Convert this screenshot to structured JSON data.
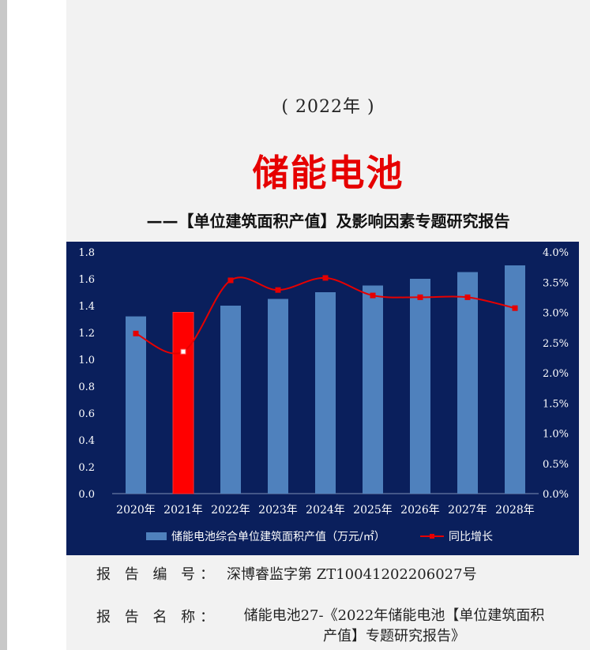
{
  "doc": {
    "year_line": "( 2022年 )",
    "title": "储能电池",
    "subtitle": "——【单位建筑面积产值】及影响因素专题研究报告"
  },
  "chart_data": {
    "type": "bar",
    "categories": [
      "2020年",
      "2021年",
      "2022年",
      "2023年",
      "2024年",
      "2025年",
      "2026年",
      "2027年",
      "2028年"
    ],
    "series": [
      {
        "name": "储能电池综合单位建筑面积产值（万元/㎡）",
        "kind": "bar",
        "axis": "left",
        "values": [
          1.32,
          1.35,
          1.4,
          1.45,
          1.5,
          1.55,
          1.6,
          1.65,
          1.7
        ],
        "color": "#4f81bd",
        "highlight_index": 1,
        "highlight_color": "#ff0000"
      },
      {
        "name": "同比增长",
        "kind": "line",
        "axis": "right",
        "values": [
          2.65,
          2.35,
          3.53,
          3.37,
          3.57,
          3.28,
          3.25,
          3.25,
          3.07
        ],
        "unit": "%",
        "color": "#e60000"
      }
    ],
    "y_left": {
      "min": 0,
      "max": 1.8,
      "step": 0.2,
      "ticks": [
        "0.0",
        "0.2",
        "0.4",
        "0.6",
        "0.8",
        "1.0",
        "1.2",
        "1.4",
        "1.6",
        "1.8"
      ]
    },
    "y_right": {
      "min": 0,
      "max": 4.0,
      "step": 0.5,
      "ticks": [
        "0.0%",
        "0.5%",
        "1.0%",
        "1.5%",
        "2.0%",
        "2.5%",
        "3.0%",
        "3.5%",
        "4.0%"
      ]
    },
    "legend_position": "bottom",
    "background": "#0a1f5c"
  },
  "info": {
    "report_no_label": "报 告 编 号：",
    "report_no_value": "深博睿监字第 ZT10041202206027号",
    "report_name_label": "报 告 名 称：",
    "report_name_value_line1": "储能电池27-《2022年储能电池【单位建筑面积",
    "report_name_value_line2": "产值】专题研究报告》"
  }
}
